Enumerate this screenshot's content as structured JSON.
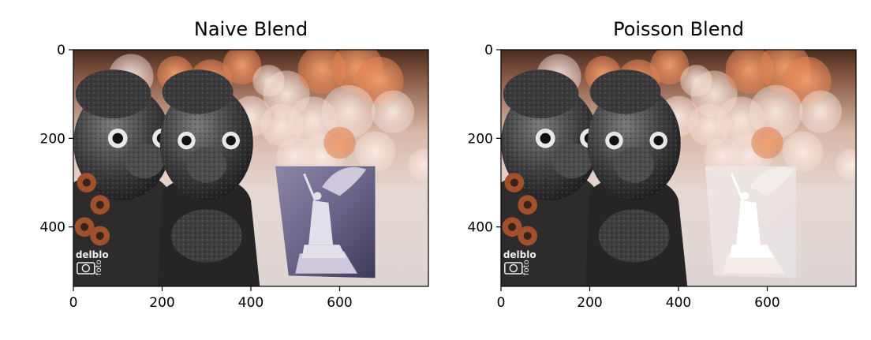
{
  "chart_data": [
    {
      "type": "image",
      "title": "Naive Blend",
      "xlim": [
        0,
        800
      ],
      "ylim": [
        534,
        0
      ],
      "xticks": [
        0,
        200,
        400,
        600
      ],
      "yticks": [
        0,
        200,
        400
      ],
      "image": {
        "description_free": true,
        "background": "bokeh",
        "statues": "stone figures",
        "watermark_lines": [
          "delblo",
          "foto"
        ],
        "inset_style": "naive"
      }
    },
    {
      "type": "image",
      "title": "Poisson Blend",
      "xlim": [
        0,
        800
      ],
      "ylim": [
        534,
        0
      ],
      "xticks": [
        0,
        200,
        400,
        600
      ],
      "yticks": [
        0,
        200,
        400
      ],
      "image": {
        "background": "bokeh",
        "statues": "stone figures",
        "watermark_lines": [
          "delblo",
          "foto"
        ],
        "inset_style": "poisson"
      }
    }
  ]
}
